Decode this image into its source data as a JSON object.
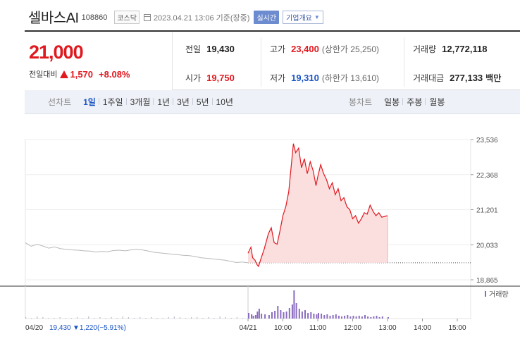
{
  "header": {
    "name": "셀바스AI",
    "code": "108860",
    "market": "코스닥",
    "date": "2023.04.21 13:06 기준(장중)",
    "realtime_label": "실시간",
    "company_label": "기업개요"
  },
  "quote": {
    "price": "21,000",
    "change_label": "전일대비",
    "change_amount": "1,570",
    "change_pct": "+8.08%",
    "prev_close_label": "전일",
    "prev_close": "19,430",
    "high_label": "고가",
    "high": "23,400",
    "upper_limit": "(상한가 25,250)",
    "volume_label": "거래량",
    "volume": "12,772,118",
    "open_label": "시가",
    "open": "19,750",
    "low_label": "저가",
    "low": "19,310",
    "lower_limit": "(하한가 13,610)",
    "amount_label": "거래대금",
    "amount": "277,133",
    "amount_unit": "백만"
  },
  "tabs": {
    "line_label": "선차트",
    "line_periods": [
      "1일",
      "1주일",
      "3개월",
      "1년",
      "3년",
      "5년",
      "10년"
    ],
    "active": "1일",
    "candle_label": "봉차트",
    "candle_periods": [
      "일봉",
      "주봉",
      "월봉"
    ]
  },
  "colors": {
    "up": "#e0191f",
    "down": "#1a54c4",
    "accent": "#6d8bcf"
  },
  "chart_data": {
    "type": "line",
    "y_ticks": [
      "23,536",
      "22,368",
      "21,201",
      "20,033",
      "18,865"
    ],
    "ylim": [
      18865,
      23536
    ],
    "x_ticks": [
      "04/21",
      "10:00",
      "11:00",
      "12:00",
      "13:00",
      "14:00",
      "15:00"
    ],
    "prev_day_label": "04/20",
    "prev_day_summary": "19,430",
    "prev_day_change": "▼1,220",
    "prev_day_pct": "(−5.91%)",
    "volume_legend": "거래량",
    "prev_close": 19430,
    "prev_day_series": [
      [
        0,
        20100
      ],
      [
        1,
        19980
      ],
      [
        2,
        20050
      ],
      [
        3,
        19990
      ],
      [
        4,
        19920
      ],
      [
        5,
        19960
      ],
      [
        6,
        19900
      ],
      [
        7,
        19880
      ],
      [
        8,
        19860
      ],
      [
        9,
        19850
      ],
      [
        10,
        19830
      ],
      [
        11,
        19820
      ],
      [
        12,
        19790
      ],
      [
        13,
        19810
      ],
      [
        14,
        19800
      ],
      [
        15,
        19840
      ],
      [
        16,
        19850
      ],
      [
        17,
        19830
      ],
      [
        18,
        19860
      ],
      [
        19,
        19880
      ],
      [
        20,
        19860
      ],
      [
        21,
        19820
      ],
      [
        22,
        19780
      ],
      [
        23,
        19760
      ],
      [
        24,
        19740
      ],
      [
        25,
        19720
      ],
      [
        26,
        19700
      ],
      [
        27,
        19680
      ],
      [
        28,
        19670
      ],
      [
        29,
        19640
      ],
      [
        30,
        19600
      ],
      [
        31,
        19580
      ],
      [
        32,
        19560
      ],
      [
        33,
        19540
      ],
      [
        34,
        19520
      ],
      [
        35,
        19480
      ],
      [
        36,
        19440
      ],
      [
        37,
        19460
      ],
      [
        38,
        19430
      ]
    ],
    "today_series": [
      [
        "09:00",
        19750
      ],
      [
        "09:05",
        19950
      ],
      [
        "09:08",
        19600
      ],
      [
        "09:12",
        19520
      ],
      [
        "09:15",
        19380
      ],
      [
        "09:18",
        19310
      ],
      [
        "09:22",
        19550
      ],
      [
        "09:28",
        19900
      ],
      [
        "09:35",
        20400
      ],
      [
        "09:40",
        20600
      ],
      [
        "09:45",
        20100
      ],
      [
        "09:50",
        20050
      ],
      [
        "09:55",
        20500
      ],
      [
        "10:00",
        21000
      ],
      [
        "10:05",
        21300
      ],
      [
        "10:10",
        21800
      ],
      [
        "10:15",
        22800
      ],
      [
        "10:18",
        23400
      ],
      [
        "10:22",
        23100
      ],
      [
        "10:27",
        23250
      ],
      [
        "10:32",
        22600
      ],
      [
        "10:37",
        22900
      ],
      [
        "10:42",
        22400
      ],
      [
        "10:47",
        22800
      ],
      [
        "10:52",
        22500
      ],
      [
        "10:57",
        22000
      ],
      [
        "11:00",
        22300
      ],
      [
        "11:05",
        22700
      ],
      [
        "11:10",
        22400
      ],
      [
        "11:15",
        22200
      ],
      [
        "11:20",
        21900
      ],
      [
        "11:25",
        22100
      ],
      [
        "11:30",
        21700
      ],
      [
        "11:35",
        21900
      ],
      [
        "11:40",
        21500
      ],
      [
        "11:45",
        21600
      ],
      [
        "11:50",
        21300
      ],
      [
        "11:55",
        21200
      ],
      [
        "12:00",
        20900
      ],
      [
        "12:05",
        21000
      ],
      [
        "12:10",
        20750
      ],
      [
        "12:15",
        20900
      ],
      [
        "12:20",
        21100
      ],
      [
        "12:25",
        21050
      ],
      [
        "12:30",
        21350
      ],
      [
        "12:35",
        21150
      ],
      [
        "12:40",
        21000
      ],
      [
        "12:45",
        21100
      ],
      [
        "12:50",
        20950
      ],
      [
        "13:00",
        21000
      ]
    ],
    "prev_day_volume": [
      2,
      1,
      3,
      2,
      1,
      1,
      2,
      1,
      1,
      2,
      1,
      3,
      1,
      2,
      1,
      2,
      1,
      3,
      2,
      1,
      2,
      1,
      2,
      1,
      1,
      2,
      3,
      2,
      1,
      2,
      2,
      1,
      2,
      1,
      3,
      2,
      1,
      2,
      1
    ],
    "today_volume": [
      8,
      6,
      4,
      5,
      10,
      14,
      7,
      6,
      5,
      9,
      11,
      18,
      12,
      9,
      10,
      15,
      20,
      40,
      22,
      14,
      10,
      12,
      8,
      9,
      7,
      6,
      8,
      7,
      5,
      6,
      4,
      5,
      6,
      4,
      3,
      4,
      5,
      3,
      4,
      3,
      4,
      3,
      5,
      3,
      2,
      3,
      4,
      2,
      3,
      2
    ]
  }
}
